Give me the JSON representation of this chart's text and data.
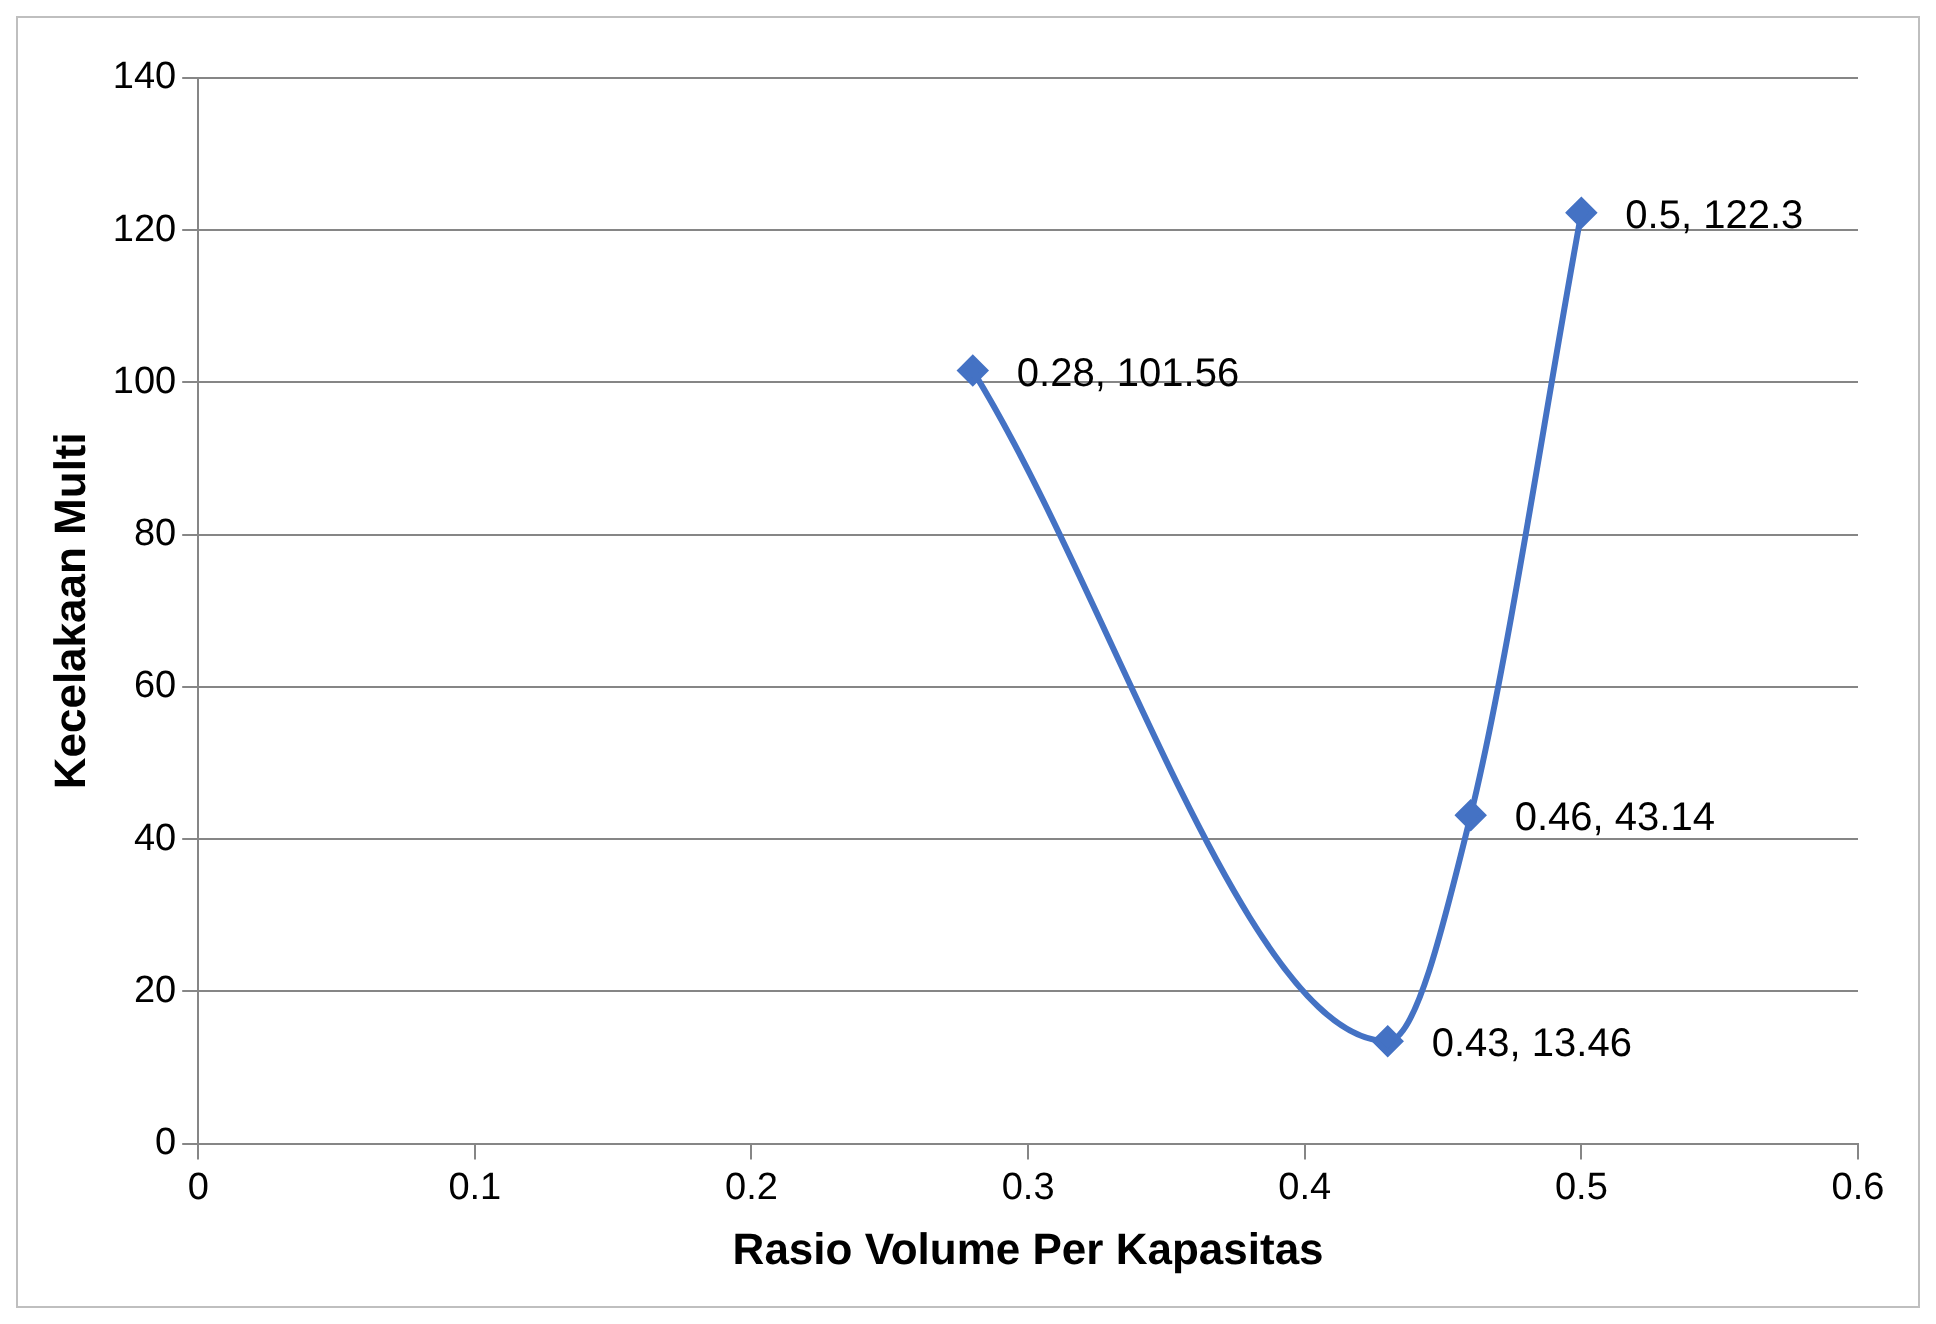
{
  "chart_data": {
    "type": "line",
    "xlabel": "Rasio Volume Per Kapasitas",
    "ylabel": "Kecelakaan Multi",
    "x": [
      0.28,
      0.43,
      0.46,
      0.5
    ],
    "series": [
      {
        "color": "#4472c4",
        "values": [
          101.56,
          13.46,
          43.14,
          122.3
        ],
        "value_labels": [
          "0.28, 101.56",
          "0.43, 13.46",
          "0.46, 43.14",
          "0.5, 122.3"
        ]
      }
    ],
    "xlim": [
      0,
      0.6
    ],
    "xticks": [
      0,
      0.1,
      0.2,
      0.3,
      0.4,
      0.5,
      0.6
    ],
    "ylim": [
      0,
      140
    ],
    "yticks": [
      0,
      20,
      40,
      60,
      80,
      100,
      120,
      140
    ],
    "grid": "y",
    "legend": false,
    "marker": "diamond",
    "line_style": "solid"
  }
}
